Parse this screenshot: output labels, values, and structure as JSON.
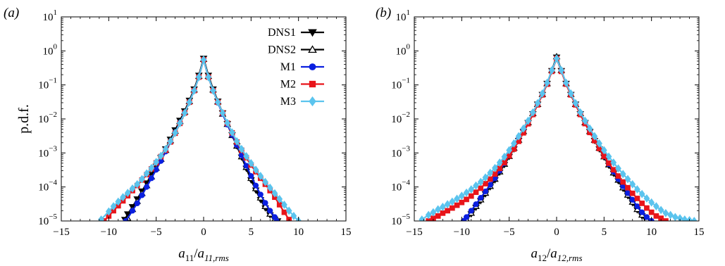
{
  "chart_data": [
    {
      "type": "line",
      "panel_label": "(a)",
      "xlabel": {
        "base": "a",
        "sub": "11",
        "sep": "/",
        "base2": "a",
        "sub2": "11,rms"
      },
      "ylabel": "p.d.f.",
      "xlim": [
        -15,
        15
      ],
      "ylim": [
        1e-05,
        10
      ],
      "yscale": "log",
      "xticks": [
        "−15",
        "−10",
        "−5",
        "0",
        "5",
        "10",
        "15"
      ],
      "yticks": [
        {
          "base": "10",
          "exp": "1"
        },
        {
          "base": "10",
          "exp": "0"
        },
        {
          "base": "10",
          "exp": "−1"
        },
        {
          "base": "10",
          "exp": "−2"
        },
        {
          "base": "10",
          "exp": "−3"
        },
        {
          "base": "10",
          "exp": "−4"
        },
        {
          "base": "10",
          "exp": "−5"
        }
      ],
      "legend_position": "top-right",
      "series": [
        {
          "name": "DNS1",
          "color": "#000000",
          "marker": "triangle-down",
          "filled": true,
          "x": [
            -8.3,
            -8.0,
            -7.5,
            -7.0,
            -6.5,
            -6.0,
            -5.5,
            -5.0,
            -4.5,
            -4.0,
            -3.5,
            -3.0,
            -2.5,
            -2.0,
            -1.5,
            -1.0,
            -0.5,
            0.0,
            0.5,
            1.0,
            1.5,
            2.0,
            2.5,
            3.0,
            3.5,
            4.0,
            4.5,
            5.0,
            5.5,
            6.0,
            6.5,
            7.0,
            7.5,
            7.8
          ],
          "y": [
            1.1e-05,
            1.6e-05,
            2.6e-05,
            4.4e-05,
            7.5e-05,
            0.00013,
            0.00023,
            0.0004,
            0.00072,
            0.0013,
            0.0025,
            0.0047,
            0.009,
            0.017,
            0.035,
            0.075,
            0.19,
            0.6,
            0.19,
            0.075,
            0.033,
            0.015,
            0.0072,
            0.0034,
            0.0016,
            0.00075,
            0.00035,
            0.00016,
            8e-05,
            4.2e-05,
            2.4e-05,
            1.5e-05,
            1.1e-05,
            1e-05
          ]
        },
        {
          "name": "DNS2",
          "color": "#000000",
          "marker": "triangle-up",
          "filled": false,
          "x": [
            -8.0,
            -7.5,
            -7.0,
            -6.5,
            -6.0,
            -5.5,
            -5.0,
            -4.5,
            -4.0,
            -3.5,
            -3.0,
            -2.5,
            -2.0,
            -1.5,
            -1.0,
            -0.5,
            0.0,
            0.5,
            1.0,
            1.5,
            2.0,
            2.5,
            3.0,
            3.5,
            4.0,
            4.5,
            5.0,
            5.5,
            6.0,
            6.5,
            7.0,
            7.5
          ],
          "y": [
            1.2e-05,
            2.2e-05,
            3.8e-05,
            6.5e-05,
            0.00011,
            0.0002,
            0.00036,
            0.00066,
            0.0012,
            0.0023,
            0.0044,
            0.0085,
            0.016,
            0.033,
            0.072,
            0.18,
            0.57,
            0.18,
            0.072,
            0.032,
            0.014,
            0.007,
            0.0033,
            0.0016,
            0.00078,
            0.00038,
            0.00018,
            9e-05,
            4.8e-05,
            2.7e-05,
            1.6e-05,
            1.1e-05
          ]
        },
        {
          "name": "M1",
          "color": "#0a1fe0",
          "marker": "circle",
          "filled": true,
          "x": [
            -8.2,
            -7.5,
            -7.0,
            -6.5,
            -6.0,
            -5.5,
            -5.0,
            -4.5,
            -4.0,
            -3.5,
            -3.0,
            -2.5,
            -2.0,
            -1.5,
            -1.0,
            -0.5,
            0.0,
            0.5,
            1.0,
            1.5,
            2.0,
            2.5,
            3.0,
            3.5,
            4.0,
            4.5,
            5.0,
            5.5,
            6.0,
            6.5,
            7.0,
            7.5,
            7.7
          ],
          "y": [
            1e-05,
            2e-05,
            3.3e-05,
            5.7e-05,
            0.0001,
            0.00018,
            0.00032,
            0.00058,
            0.0011,
            0.0021,
            0.004,
            0.0078,
            0.015,
            0.031,
            0.068,
            0.17,
            0.55,
            0.17,
            0.068,
            0.03,
            0.014,
            0.0068,
            0.0034,
            0.0017,
            0.00085,
            0.00042,
            0.00021,
            0.00011,
            6e-05,
            3.4e-05,
            2e-05,
            1.3e-05,
            1e-05
          ]
        },
        {
          "name": "M2",
          "color": "#e8141a",
          "marker": "square",
          "filled": true,
          "x": [
            -10.5,
            -10.0,
            -9.5,
            -9.0,
            -8.5,
            -8.0,
            -7.5,
            -7.0,
            -6.5,
            -6.0,
            -5.5,
            -5.0,
            -4.5,
            -4.0,
            -3.5,
            -3.0,
            -2.5,
            -2.0,
            -1.5,
            -1.0,
            -0.5,
            0.0,
            0.5,
            1.0,
            1.5,
            2.0,
            2.5,
            3.0,
            3.5,
            4.0,
            4.5,
            5.0,
            5.5,
            6.0,
            6.5,
            7.0,
            7.5,
            8.0,
            8.5,
            9.0
          ],
          "y": [
            1e-05,
            1.4e-05,
            2e-05,
            2.8e-05,
            3.9e-05,
            5.5e-05,
            7.8e-05,
            0.00011,
            0.00016,
            0.00023,
            0.00034,
            0.00051,
            0.00078,
            0.0012,
            0.0021,
            0.0038,
            0.0074,
            0.015,
            0.031,
            0.068,
            0.17,
            0.55,
            0.17,
            0.068,
            0.031,
            0.015,
            0.0075,
            0.0039,
            0.0021,
            0.0012,
            0.00072,
            0.00044,
            0.00028,
            0.00018,
            0.00012,
            7.8e-05,
            5e-05,
            3e-05,
            1.8e-05,
            1.1e-05
          ]
        },
        {
          "name": "M3",
          "color": "#5bc4ee",
          "marker": "diamond",
          "filled": true,
          "x": [
            -10.8,
            -10.0,
            -9.5,
            -9.0,
            -8.5,
            -8.0,
            -7.5,
            -7.0,
            -6.5,
            -6.0,
            -5.5,
            -5.0,
            -4.5,
            -4.0,
            -3.5,
            -3.0,
            -2.5,
            -2.0,
            -1.5,
            -1.0,
            -0.5,
            0.0,
            0.5,
            1.0,
            1.5,
            2.0,
            2.5,
            3.0,
            3.5,
            4.0,
            4.5,
            5.0,
            5.5,
            6.0,
            6.5,
            7.0,
            7.5,
            8.0,
            8.5,
            9.0,
            9.5,
            10.0
          ],
          "y": [
            1.1e-05,
            1.9e-05,
            2.7e-05,
            3.7e-05,
            5e-05,
            6.7e-05,
            9e-05,
            0.00012,
            0.00017,
            0.00025,
            0.00036,
            0.00054,
            0.00082,
            0.0013,
            0.0022,
            0.0039,
            0.0075,
            0.015,
            0.031,
            0.068,
            0.17,
            0.55,
            0.17,
            0.068,
            0.031,
            0.015,
            0.0076,
            0.004,
            0.0022,
            0.0013,
            0.0008,
            0.0005,
            0.00032,
            0.00021,
            0.00014,
            9.5e-05,
            6.5e-05,
            4.4e-05,
            3e-05,
            2e-05,
            1.4e-05,
            1e-05
          ]
        }
      ]
    },
    {
      "type": "line",
      "panel_label": "(b)",
      "xlabel": {
        "base": "a",
        "sub": "12",
        "sep": "/",
        "base2": "a",
        "sub2": "12,rms"
      },
      "ylabel": "",
      "xlim": [
        -15,
        15
      ],
      "ylim": [
        1e-05,
        10
      ],
      "yscale": "log",
      "xticks": [
        "−15",
        "−10",
        "−5",
        "0",
        "5",
        "10",
        "15"
      ],
      "yticks": [
        {
          "base": "10",
          "exp": "1"
        },
        {
          "base": "10",
          "exp": "0"
        },
        {
          "base": "10",
          "exp": "−1"
        },
        {
          "base": "10",
          "exp": "−2"
        },
        {
          "base": "10",
          "exp": "−3"
        },
        {
          "base": "10",
          "exp": "−4"
        },
        {
          "base": "10",
          "exp": "−5"
        }
      ],
      "series": [
        {
          "name": "DNS1",
          "color": "#000000",
          "marker": "triangle-down",
          "filled": true,
          "x": [
            -9.6,
            -9.0,
            -8.5,
            -8.0,
            -7.5,
            -7.0,
            -6.5,
            -6.0,
            -5.5,
            -5.0,
            -4.5,
            -4.0,
            -3.5,
            -3.0,
            -2.5,
            -2.0,
            -1.5,
            -1.0,
            -0.5,
            0.0,
            0.5,
            1.0,
            1.5,
            2.0,
            2.5,
            3.0,
            3.5,
            4.0,
            4.5,
            5.0,
            5.5,
            6.0,
            6.5,
            7.0,
            7.5,
            8.0,
            8.5,
            9.0,
            9.5
          ],
          "y": [
            1e-05,
            1.6e-05,
            2.5e-05,
            3.9e-05,
            6.2e-05,
            0.0001,
            0.00016,
            0.00027,
            0.00045,
            0.00078,
            0.0013,
            0.0023,
            0.0042,
            0.0077,
            0.014,
            0.027,
            0.052,
            0.11,
            0.26,
            0.65,
            0.26,
            0.11,
            0.052,
            0.027,
            0.014,
            0.0077,
            0.0042,
            0.0023,
            0.0013,
            0.00075,
            0.00043,
            0.00025,
            0.00015,
            9e-05,
            5.5e-05,
            3.4e-05,
            2.1e-05,
            1.4e-05,
            1e-05
          ]
        },
        {
          "name": "DNS2",
          "color": "#000000",
          "marker": "triangle-up",
          "filled": false,
          "x": [
            -9.5,
            -9.0,
            -8.5,
            -8.0,
            -7.5,
            -7.0,
            -6.5,
            -6.0,
            -5.5,
            -5.0,
            -4.5,
            -4.0,
            -3.5,
            -3.0,
            -2.5,
            -2.0,
            -1.5,
            -1.0,
            -0.5,
            0.0,
            0.5,
            1.0,
            1.5,
            2.0,
            2.5,
            3.0,
            3.5,
            4.0,
            4.5,
            5.0,
            5.5,
            6.0,
            6.5,
            7.0,
            7.5,
            8.0,
            8.5,
            9.0,
            9.5
          ],
          "y": [
            1.1e-05,
            1.7e-05,
            2.7e-05,
            4.2e-05,
            6.6e-05,
            0.000105,
            0.00017,
            0.00028,
            0.00047,
            0.0008,
            0.0014,
            0.0024,
            0.0043,
            0.0078,
            0.0145,
            0.027,
            0.053,
            0.11,
            0.27,
            0.68,
            0.27,
            0.11,
            0.053,
            0.027,
            0.0145,
            0.0078,
            0.0043,
            0.0024,
            0.0014,
            0.00078,
            0.00045,
            0.00026,
            0.00016,
            9.5e-05,
            5.8e-05,
            3.6e-05,
            2.2e-05,
            1.5e-05,
            1.1e-05
          ]
        },
        {
          "name": "M1",
          "color": "#0a1fe0",
          "marker": "circle",
          "filled": true,
          "x": [
            -9.8,
            -9.5,
            -9.0,
            -8.5,
            -8.0,
            -7.5,
            -7.0,
            -6.5,
            -6.0,
            -5.5,
            -5.0,
            -4.5,
            -4.0,
            -3.5,
            -3.0,
            -2.5,
            -2.0,
            -1.5,
            -1.0,
            -0.5,
            0.0,
            0.5,
            1.0,
            1.5,
            2.0,
            2.5,
            3.0,
            3.5,
            4.0,
            4.5,
            5.0,
            5.5,
            6.0,
            6.5,
            7.0,
            7.5,
            8.0,
            8.5,
            9.0,
            9.5,
            10.0
          ],
          "y": [
            1e-05,
            1.3e-05,
            2e-05,
            3.1e-05,
            4.8e-05,
            7.4e-05,
            0.000115,
            0.00018,
            0.0003,
            0.0005,
            0.00085,
            0.0015,
            0.0026,
            0.0046,
            0.0083,
            0.015,
            0.028,
            0.054,
            0.11,
            0.26,
            0.6,
            0.26,
            0.11,
            0.054,
            0.028,
            0.015,
            0.0082,
            0.0045,
            0.0025,
            0.0014,
            0.0008,
            0.00047,
            0.00028,
            0.00017,
            0.000105,
            6.6e-05,
            4.2e-05,
            2.7e-05,
            1.8e-05,
            1.3e-05,
            1e-05
          ]
        },
        {
          "name": "M2",
          "color": "#e8141a",
          "marker": "square",
          "filled": true,
          "x": [
            -13.5,
            -13.0,
            -12.5,
            -12.0,
            -11.5,
            -11.0,
            -10.5,
            -10.0,
            -9.5,
            -9.0,
            -8.5,
            -8.0,
            -7.5,
            -7.0,
            -6.5,
            -6.0,
            -5.5,
            -5.0,
            -4.5,
            -4.0,
            -3.5,
            -3.0,
            -2.5,
            -2.0,
            -1.5,
            -1.0,
            -0.5,
            0.0,
            0.5,
            1.0,
            1.5,
            2.0,
            2.5,
            3.0,
            3.5,
            4.0,
            4.5,
            5.0,
            5.5,
            6.0,
            6.5,
            7.0,
            7.5,
            8.0,
            8.5,
            9.0,
            9.5,
            10.0,
            10.5,
            11.0,
            11.5
          ],
          "y": [
            1e-05,
            1.2e-05,
            1.4e-05,
            1.7e-05,
            2e-05,
            2.4e-05,
            2.9e-05,
            3.5e-05,
            4.3e-05,
            5.4e-05,
            7e-05,
            9.2e-05,
            0.000125,
            0.00017,
            0.00024,
            0.00035,
            0.00052,
            0.00082,
            0.0013,
            0.0022,
            0.0039,
            0.0072,
            0.0135,
            0.026,
            0.051,
            0.105,
            0.25,
            0.6,
            0.25,
            0.105,
            0.051,
            0.026,
            0.0135,
            0.0073,
            0.004,
            0.0023,
            0.00135,
            0.0008,
            0.0005,
            0.00032,
            0.00021,
            0.00014,
            9.5e-05,
            6.5e-05,
            4.6e-05,
            3.3e-05,
            2.4e-05,
            1.8e-05,
            1.4e-05,
            1.2e-05,
            1e-05
          ]
        },
        {
          "name": "M3",
          "color": "#5bc4ee",
          "marker": "diamond",
          "filled": true,
          "x": [
            -14.2,
            -13.5,
            -13.0,
            -12.5,
            -12.0,
            -11.5,
            -11.0,
            -10.5,
            -10.0,
            -9.5,
            -9.0,
            -8.5,
            -8.0,
            -7.5,
            -7.0,
            -6.5,
            -6.0,
            -5.5,
            -5.0,
            -4.5,
            -4.0,
            -3.5,
            -3.0,
            -2.5,
            -2.0,
            -1.5,
            -1.0,
            -0.5,
            0.0,
            0.5,
            1.0,
            1.5,
            2.0,
            2.5,
            3.0,
            3.5,
            4.0,
            4.5,
            5.0,
            5.5,
            6.0,
            6.5,
            7.0,
            7.5,
            8.0,
            8.5,
            9.0,
            9.5,
            10.0,
            10.5,
            11.0,
            11.5,
            12.0,
            12.5,
            13.0,
            13.5,
            14.0,
            14.5
          ],
          "y": [
            1.1e-05,
            1.5e-05,
            1.8e-05,
            2.2e-05,
            2.6e-05,
            3.1e-05,
            3.7e-05,
            4.5e-05,
            5.5e-05,
            6.8e-05,
            8.5e-05,
            0.00011,
            0.00014,
            0.00019,
            0.00026,
            0.00036,
            0.00052,
            0.00077,
            0.0012,
            0.0019,
            0.0031,
            0.0052,
            0.0088,
            0.0155,
            0.029,
            0.056,
            0.115,
            0.27,
            0.6,
            0.27,
            0.115,
            0.056,
            0.029,
            0.0155,
            0.0088,
            0.0052,
            0.0031,
            0.0019,
            0.0012,
            0.00078,
            0.00052,
            0.00035,
            0.00024,
            0.00017,
            0.00012,
            8.5e-05,
            6.2e-05,
            4.6e-05,
            3.5e-05,
            2.7e-05,
            2.1e-05,
            1.7e-05,
            1.5e-05,
            1.3e-05,
            1.2e-05,
            1.1e-05,
            1.05e-05,
            1e-05
          ]
        }
      ]
    }
  ]
}
